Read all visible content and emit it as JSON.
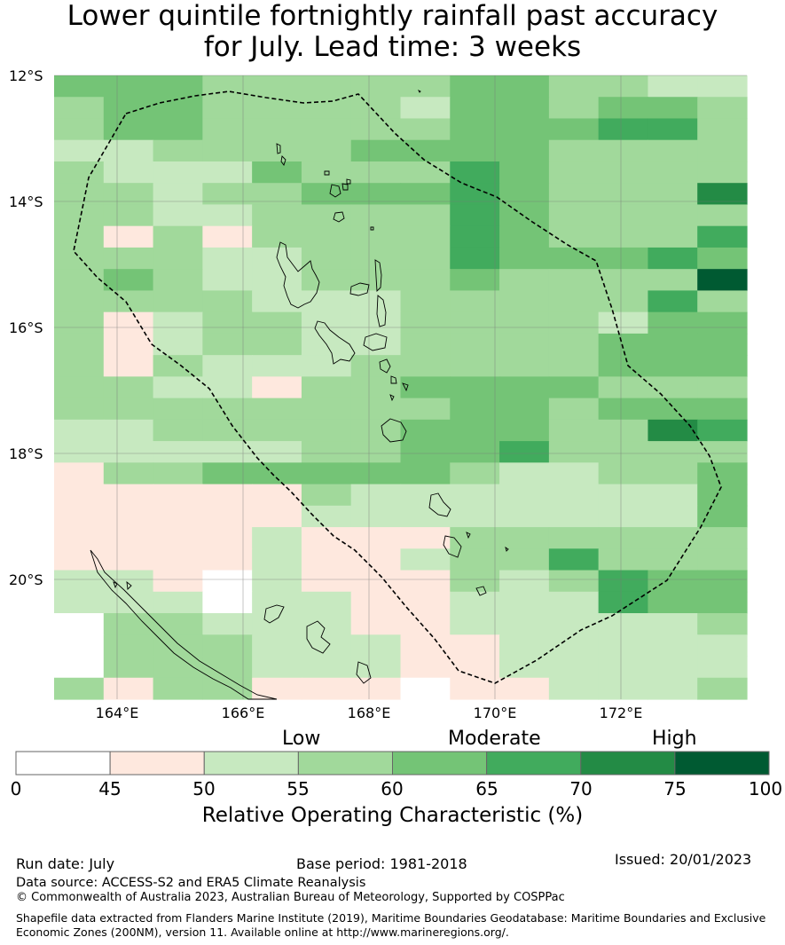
{
  "title": {
    "line1": "Lower quintile fortnightly rainfall past accuracy",
    "line2": "for July. Lead time: 3 weeks"
  },
  "map": {
    "lat_labels": [
      "12°S",
      "14°S",
      "16°S",
      "18°S",
      "20°S"
    ],
    "lon_labels": [
      "164°E",
      "166°E",
      "168°E",
      "170°E",
      "172°E"
    ],
    "grid_colors": {
      "0": "#ffffff",
      "1": "#fee8de",
      "2": "#c7e9c0",
      "3": "#a1d99b",
      "4": "#74c476",
      "5": "#41ab5d",
      "6": "#238b45",
      "7": "#005a32"
    },
    "grid_rows": [
      "44433333443322",
      "34433332443443",
      "34433333444553",
      "22333344443333",
      "32224333543333",
      "33233444543336",
      "33223333543333",
      "31313333543335",
      "33322333544454",
      "34322333433337",
      "33332223333353",
      "31233223333244",
      "31233223333444",
      "31322233333444",
      "33221334444333",
      "33333333443444",
      "22333334443365",
      "22222334453333",
      "13344444322334",
      "11111322222224",
      "11111222222224",
      "11112111333333",
      "11112112335333",
      "22102111323544",
      "22202211222544",
      "03322211222223",
      "03332221122222",
      "03332221122222",
      "31331110112223"
    ]
  },
  "colorbar": {
    "categories": [
      "Low",
      "Moderate",
      "High"
    ],
    "ticks": [
      "0",
      "45",
      "50",
      "55",
      "60",
      "65",
      "70",
      "75",
      "100"
    ],
    "colors": [
      "#ffffff",
      "#fee8de",
      "#c7e9c0",
      "#a1d99b",
      "#74c476",
      "#41ab5d",
      "#238b45",
      "#005a32"
    ],
    "label": "Relative Operating Characteristic (%)"
  },
  "footer": {
    "run_date": "Run date: July",
    "base_period": "Base period: 1981-2018",
    "issued": "Issued: 20/01/2023",
    "data_source": "Data source: ACCESS-S2 and ERA5 Climate Reanalysis",
    "copyright": "© Commonwealth of Australia 2023, Australian Bureau of Meteorology, Supported by COSPPac",
    "shapefile": "Shapefile data extracted from Flanders Marine Institute (2019), Maritime Boundaries Geodatabase: Maritime Boundaries and Exclusive Economic Zones (200NM), version 11. Available online at http://www.marineregions.org/."
  }
}
